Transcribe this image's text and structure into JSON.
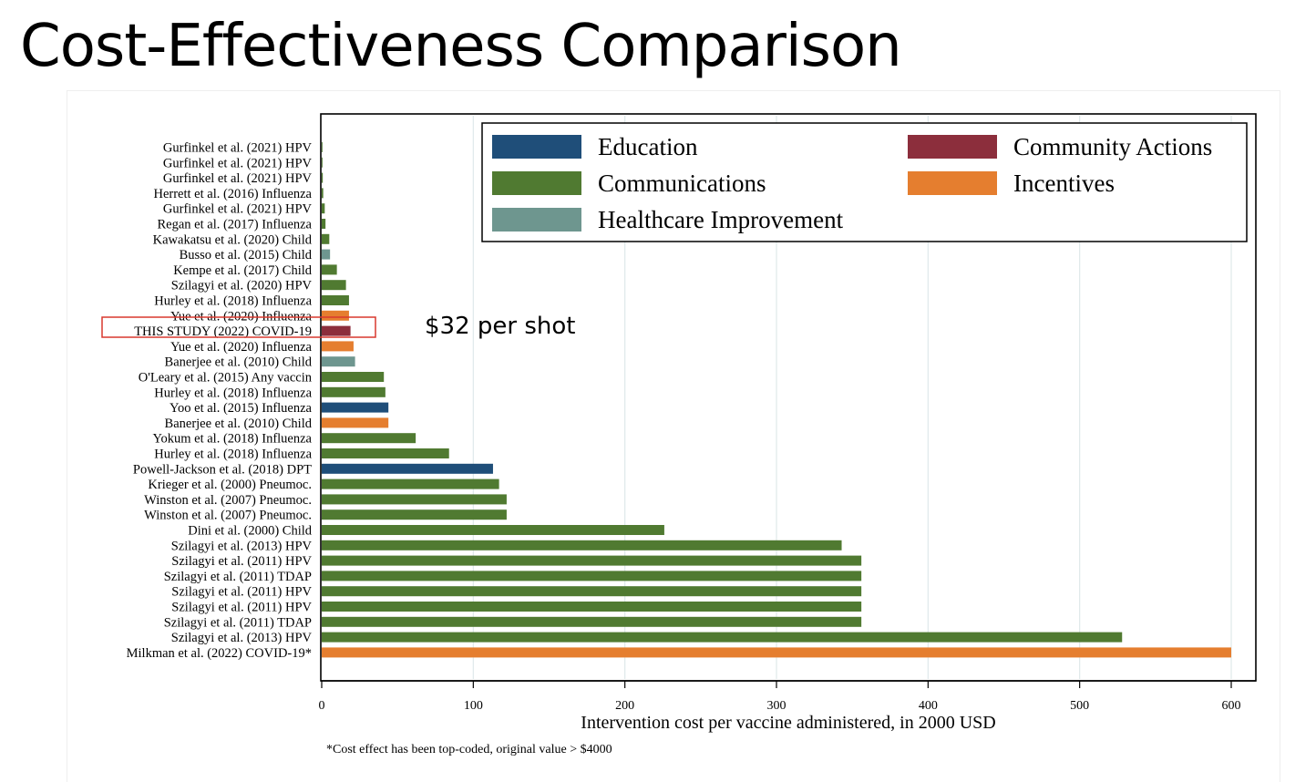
{
  "slide": {
    "title": "Cost-Effectiveness Comparison"
  },
  "annotation": {
    "callout_text": "$32 per shot",
    "highlight_label": "THIS STUDY (2022) COVID-19",
    "highlight_color": "#d9382e"
  },
  "colors": {
    "Education": "#1f4e79",
    "Communications": "#507a31",
    "Healthcare Improvement": "#6e968f",
    "Community Actions": "#8c2e3c",
    "Incentives": "#e57e2f"
  },
  "chart_data": {
    "type": "bar",
    "orientation": "horizontal",
    "xlabel": "Intervention cost per vaccine administered, in 2000 USD",
    "xlim": [
      0,
      600
    ],
    "xticks": [
      0,
      100,
      200,
      300,
      400,
      500,
      600
    ],
    "grid": true,
    "legend_position": "top-right",
    "legend": [
      "Education",
      "Communications",
      "Healthcare Improvement",
      "Community Actions",
      "Incentives"
    ],
    "footnote": "*Cost effect has been top-coded, original value > $4000",
    "bars": [
      {
        "label": "Gurfinkel et al. (2021) HPV",
        "value": 0.3,
        "category": "Communications"
      },
      {
        "label": "Gurfinkel et al. (2021) HPV",
        "value": 0.5,
        "category": "Communications"
      },
      {
        "label": "Gurfinkel et al. (2021) HPV",
        "value": 0.7,
        "category": "Communications"
      },
      {
        "label": "Herrett et al. (2016) Influenza",
        "value": 1,
        "category": "Communications"
      },
      {
        "label": "Gurfinkel et al. (2021) HPV",
        "value": 2,
        "category": "Communications"
      },
      {
        "label": "Regan et al. (2017) Influenza",
        "value": 2.5,
        "category": "Communications"
      },
      {
        "label": "Kawakatsu et al. (2020) Child",
        "value": 5,
        "category": "Communications"
      },
      {
        "label": "Busso et al. (2015) Child",
        "value": 5.5,
        "category": "Healthcare Improvement"
      },
      {
        "label": "Kempe et al. (2017) Child",
        "value": 10,
        "category": "Communications"
      },
      {
        "label": "Szilagyi et al. (2020) HPV",
        "value": 16,
        "category": "Communications"
      },
      {
        "label": "Hurley et al. (2018) Influenza",
        "value": 18,
        "category": "Communications"
      },
      {
        "label": "Yue et al. (2020) Influenza",
        "value": 18,
        "category": "Incentives"
      },
      {
        "label": "THIS STUDY (2022) COVID-19",
        "value": 19,
        "category": "Community Actions"
      },
      {
        "label": "Yue et al. (2020) Influenza",
        "value": 21,
        "category": "Incentives"
      },
      {
        "label": "Banerjee et al. (2010) Child",
        "value": 22,
        "category": "Healthcare Improvement"
      },
      {
        "label": "O'Leary et al. (2015) Any vaccin",
        "value": 41,
        "category": "Communications"
      },
      {
        "label": "Hurley et al. (2018) Influenza",
        "value": 42,
        "category": "Communications"
      },
      {
        "label": "Yoo et al. (2015) Influenza",
        "value": 44,
        "category": "Education"
      },
      {
        "label": "Banerjee et al. (2010) Child",
        "value": 44,
        "category": "Incentives"
      },
      {
        "label": "Yokum et al. (2018) Influenza",
        "value": 62,
        "category": "Communications"
      },
      {
        "label": "Hurley et al. (2018) Influenza",
        "value": 84,
        "category": "Communications"
      },
      {
        "label": "Powell-Jackson et al. (2018) DPT",
        "value": 113,
        "category": "Education"
      },
      {
        "label": "Krieger et al. (2000) Pneumoc.",
        "value": 117,
        "category": "Communications"
      },
      {
        "label": "Winston et al. (2007) Pneumoc.",
        "value": 122,
        "category": "Communications"
      },
      {
        "label": "Winston et al. (2007) Pneumoc.",
        "value": 122,
        "category": "Communications"
      },
      {
        "label": "Dini et al. (2000) Child",
        "value": 226,
        "category": "Communications"
      },
      {
        "label": "Szilagyi et al. (2013) HPV",
        "value": 343,
        "category": "Communications"
      },
      {
        "label": "Szilagyi et al. (2011) HPV",
        "value": 356,
        "category": "Communications"
      },
      {
        "label": "Szilagyi et al. (2011) TDAP",
        "value": 356,
        "category": "Communications"
      },
      {
        "label": "Szilagyi et al. (2011) HPV",
        "value": 356,
        "category": "Communications"
      },
      {
        "label": "Szilagyi et al. (2011) HPV",
        "value": 356,
        "category": "Communications"
      },
      {
        "label": "Szilagyi et al. (2011) TDAP",
        "value": 356,
        "category": "Communications"
      },
      {
        "label": "Szilagyi et al. (2013) HPV",
        "value": 528,
        "category": "Communications"
      },
      {
        "label": "Milkman et al. (2022) COVID-19*",
        "value": 600,
        "category": "Incentives"
      }
    ]
  }
}
